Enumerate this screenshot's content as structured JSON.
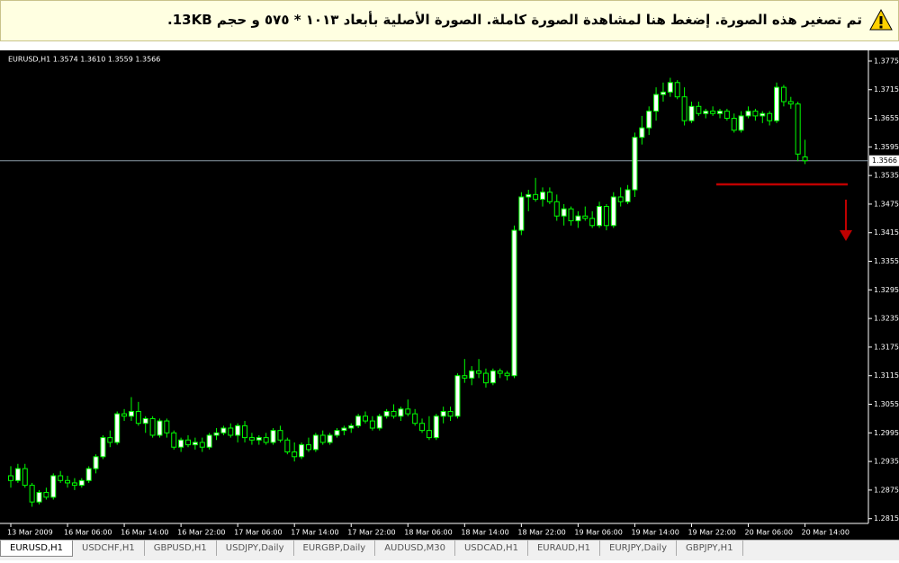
{
  "banner": {
    "text": "تم تصغير هذه الصورة. إضغط هنا لمشاهدة الصورة كاملة. الصورة الأصلية بأبعاد ١٠١٣ * ٥٧٥ و حجم 13KB."
  },
  "tabs": [
    "EURUSD,H1",
    "USDCHF,H1",
    "GBPUSD,H1",
    "USDJPY,Daily",
    "EURGBP,Daily",
    "AUDUSD,M30",
    "USDCAD,H1",
    "EURAUD,H1",
    "EURJPY,Daily",
    "GBPJPY,H1"
  ],
  "chart_data": {
    "type": "candlestick",
    "title": "EURUSD,H1  1.3574 1.3610 1.3559 1.3566",
    "up_color": "#ffffff",
    "down_color": "#000000",
    "wick_color": "#00ff00",
    "current_price": 1.3566,
    "ylim": [
      1.2805,
      1.379
    ],
    "yticks": [
      1.2815,
      1.2875,
      1.2935,
      1.2995,
      1.3055,
      1.3115,
      1.3175,
      1.3235,
      1.3295,
      1.3355,
      1.3415,
      1.3475,
      1.3535,
      1.3595,
      1.3655,
      1.3715,
      1.3775
    ],
    "categories": [
      "13 Mar 2009",
      null,
      null,
      null,
      null,
      null,
      null,
      null,
      "16 Mar 06:00",
      null,
      null,
      null,
      null,
      null,
      null,
      null,
      "16 Mar 14:00",
      null,
      null,
      null,
      null,
      null,
      null,
      null,
      "16 Mar 22:00",
      null,
      null,
      null,
      null,
      null,
      null,
      null,
      "17 Mar 06:00",
      null,
      null,
      null,
      null,
      null,
      null,
      null,
      "17 Mar 14:00",
      null,
      null,
      null,
      null,
      null,
      null,
      null,
      "17 Mar 22:00",
      null,
      null,
      null,
      null,
      null,
      null,
      null,
      "18 Mar 06:00",
      null,
      null,
      null,
      null,
      null,
      null,
      null,
      "18 Mar 14:00",
      null,
      null,
      null,
      null,
      null,
      null,
      null,
      "18 Mar 22:00",
      null,
      null,
      null,
      null,
      null,
      null,
      null,
      "19 Mar 06:00",
      null,
      null,
      null,
      null,
      null,
      null,
      null,
      "19 Mar 14:00",
      null,
      null,
      null,
      null,
      null,
      null,
      null,
      "19 Mar 22:00",
      null,
      null,
      null,
      null,
      null,
      null,
      null,
      "20 Mar 06:00",
      null,
      null,
      null,
      null,
      null,
      null,
      null,
      "20 Mar 14:00"
    ],
    "ohlc": [
      [
        1.2905,
        1.2925,
        1.288,
        1.2895
      ],
      [
        1.2895,
        1.293,
        1.289,
        1.292
      ],
      [
        1.292,
        1.293,
        1.288,
        1.2885
      ],
      [
        1.2885,
        1.289,
        1.284,
        1.285
      ],
      [
        1.285,
        1.2875,
        1.2845,
        1.287
      ],
      [
        1.287,
        1.288,
        1.2855,
        1.286
      ],
      [
        1.286,
        1.291,
        1.2855,
        1.2905
      ],
      [
        1.2905,
        1.2915,
        1.289,
        1.2895
      ],
      [
        1.2895,
        1.2905,
        1.288,
        1.289
      ],
      [
        1.289,
        1.29,
        1.2875,
        1.2885
      ],
      [
        1.2885,
        1.29,
        1.288,
        1.2895
      ],
      [
        1.2895,
        1.2925,
        1.289,
        1.292
      ],
      [
        1.292,
        1.295,
        1.291,
        1.2945
      ],
      [
        1.2945,
        1.299,
        1.294,
        1.2985
      ],
      [
        1.2985,
        1.3,
        1.2965,
        1.2975
      ],
      [
        1.2975,
        1.304,
        1.297,
        1.3035
      ],
      [
        1.3035,
        1.3045,
        1.302,
        1.303
      ],
      [
        1.303,
        1.307,
        1.302,
        1.304
      ],
      [
        1.304,
        1.306,
        1.301,
        1.3015
      ],
      [
        1.3015,
        1.303,
        1.2995,
        1.3025
      ],
      [
        1.3025,
        1.303,
        1.2985,
        1.299
      ],
      [
        1.299,
        1.3025,
        1.2985,
        1.302
      ],
      [
        1.302,
        1.3025,
        1.2985,
        1.2995
      ],
      [
        1.2995,
        1.3,
        1.296,
        1.2965
      ],
      [
        1.2965,
        1.2985,
        1.2955,
        1.298
      ],
      [
        1.298,
        1.299,
        1.2965,
        1.297
      ],
      [
        1.297,
        1.2985,
        1.296,
        1.2975
      ],
      [
        1.2975,
        1.2985,
        1.2955,
        1.2965
      ],
      [
        1.2965,
        1.2995,
        1.296,
        1.299
      ],
      [
        1.299,
        1.3005,
        1.298,
        1.2995
      ],
      [
        1.2995,
        1.301,
        1.299,
        1.3005
      ],
      [
        1.3005,
        1.3015,
        1.2985,
        1.299
      ],
      [
        1.299,
        1.3015,
        1.2975,
        1.301
      ],
      [
        1.301,
        1.302,
        1.2975,
        1.2985
      ],
      [
        1.2985,
        1.2995,
        1.297,
        1.298
      ],
      [
        1.298,
        1.299,
        1.297,
        1.2985
      ],
      [
        1.2985,
        1.2995,
        1.297,
        1.2975
      ],
      [
        1.2975,
        1.3005,
        1.297,
        1.3
      ],
      [
        1.3,
        1.301,
        1.2975,
        1.298
      ],
      [
        1.298,
        1.2985,
        1.295,
        1.2955
      ],
      [
        1.2955,
        1.2975,
        1.2935,
        1.2945
      ],
      [
        1.2945,
        1.2975,
        1.294,
        1.297
      ],
      [
        1.297,
        1.2985,
        1.2955,
        1.296
      ],
      [
        1.296,
        1.2995,
        1.2955,
        1.299
      ],
      [
        1.299,
        1.3,
        1.297,
        1.2975
      ],
      [
        1.2975,
        1.2995,
        1.297,
        1.299
      ],
      [
        1.299,
        1.3005,
        1.2985,
        1.3
      ],
      [
        1.3,
        1.301,
        1.299,
        1.3005
      ],
      [
        1.3005,
        1.3015,
        1.2995,
        1.301
      ],
      [
        1.301,
        1.3035,
        1.3005,
        1.303
      ],
      [
        1.303,
        1.304,
        1.3015,
        1.302
      ],
      [
        1.302,
        1.303,
        1.3,
        1.3005
      ],
      [
        1.3005,
        1.3035,
        1.3,
        1.303
      ],
      [
        1.303,
        1.3045,
        1.3025,
        1.304
      ],
      [
        1.304,
        1.3055,
        1.3025,
        1.303
      ],
      [
        1.303,
        1.305,
        1.302,
        1.3045
      ],
      [
        1.3045,
        1.3065,
        1.303,
        1.3035
      ],
      [
        1.3035,
        1.3045,
        1.301,
        1.3015
      ],
      [
        1.3015,
        1.3025,
        1.2995,
        1.3
      ],
      [
        1.3,
        1.303,
        1.298,
        1.2985
      ],
      [
        1.2985,
        1.3035,
        1.298,
        1.303
      ],
      [
        1.303,
        1.305,
        1.3015,
        1.304
      ],
      [
        1.304,
        1.305,
        1.302,
        1.303
      ],
      [
        1.303,
        1.312,
        1.3025,
        1.3115
      ],
      [
        1.3115,
        1.315,
        1.31,
        1.311
      ],
      [
        1.311,
        1.3135,
        1.3095,
        1.3125
      ],
      [
        1.3125,
        1.315,
        1.311,
        1.312
      ],
      [
        1.312,
        1.313,
        1.309,
        1.31
      ],
      [
        1.31,
        1.313,
        1.3095,
        1.3125
      ],
      [
        1.3125,
        1.313,
        1.311,
        1.312
      ],
      [
        1.312,
        1.3125,
        1.3105,
        1.3115
      ],
      [
        1.3115,
        1.343,
        1.311,
        1.342
      ],
      [
        1.342,
        1.35,
        1.341,
        1.349
      ],
      [
        1.349,
        1.3505,
        1.346,
        1.3495
      ],
      [
        1.3495,
        1.353,
        1.348,
        1.3485
      ],
      [
        1.3485,
        1.351,
        1.347,
        1.35
      ],
      [
        1.35,
        1.351,
        1.3475,
        1.348
      ],
      [
        1.348,
        1.3495,
        1.344,
        1.345
      ],
      [
        1.345,
        1.3475,
        1.343,
        1.3465
      ],
      [
        1.3465,
        1.347,
        1.343,
        1.344
      ],
      [
        1.344,
        1.346,
        1.3425,
        1.345
      ],
      [
        1.345,
        1.347,
        1.344,
        1.3445
      ],
      [
        1.3445,
        1.346,
        1.3425,
        1.343
      ],
      [
        1.343,
        1.348,
        1.3425,
        1.347
      ],
      [
        1.347,
        1.3475,
        1.342,
        1.343
      ],
      [
        1.343,
        1.35,
        1.3425,
        1.349
      ],
      [
        1.349,
        1.351,
        1.347,
        1.348
      ],
      [
        1.348,
        1.3515,
        1.3475,
        1.3505
      ],
      [
        1.3505,
        1.3625,
        1.349,
        1.3615
      ],
      [
        1.3615,
        1.366,
        1.36,
        1.3635
      ],
      [
        1.3635,
        1.368,
        1.362,
        1.367
      ],
      [
        1.367,
        1.372,
        1.365,
        1.3705
      ],
      [
        1.3705,
        1.373,
        1.369,
        1.371
      ],
      [
        1.371,
        1.374,
        1.37,
        1.373
      ],
      [
        1.373,
        1.3735,
        1.3695,
        1.37
      ],
      [
        1.37,
        1.372,
        1.364,
        1.365
      ],
      [
        1.365,
        1.369,
        1.3645,
        1.368
      ],
      [
        1.368,
        1.369,
        1.366,
        1.3665
      ],
      [
        1.3665,
        1.3675,
        1.3655,
        1.367
      ],
      [
        1.367,
        1.368,
        1.366,
        1.3665
      ],
      [
        1.3665,
        1.3675,
        1.3655,
        1.367
      ],
      [
        1.367,
        1.3675,
        1.365,
        1.3655
      ],
      [
        1.3655,
        1.3665,
        1.3625,
        1.363
      ],
      [
        1.363,
        1.367,
        1.3625,
        1.366
      ],
      [
        1.366,
        1.368,
        1.3655,
        1.367
      ],
      [
        1.367,
        1.3675,
        1.365,
        1.366
      ],
      [
        1.366,
        1.367,
        1.3645,
        1.3665
      ],
      [
        1.3665,
        1.367,
        1.364,
        1.365
      ],
      [
        1.365,
        1.373,
        1.3645,
        1.372
      ],
      [
        1.372,
        1.3725,
        1.368,
        1.369
      ],
      [
        1.369,
        1.37,
        1.3675,
        1.3685
      ],
      [
        1.3685,
        1.369,
        1.3565,
        1.358
      ],
      [
        1.3574,
        1.361,
        1.3559,
        1.3566
      ]
    ]
  }
}
